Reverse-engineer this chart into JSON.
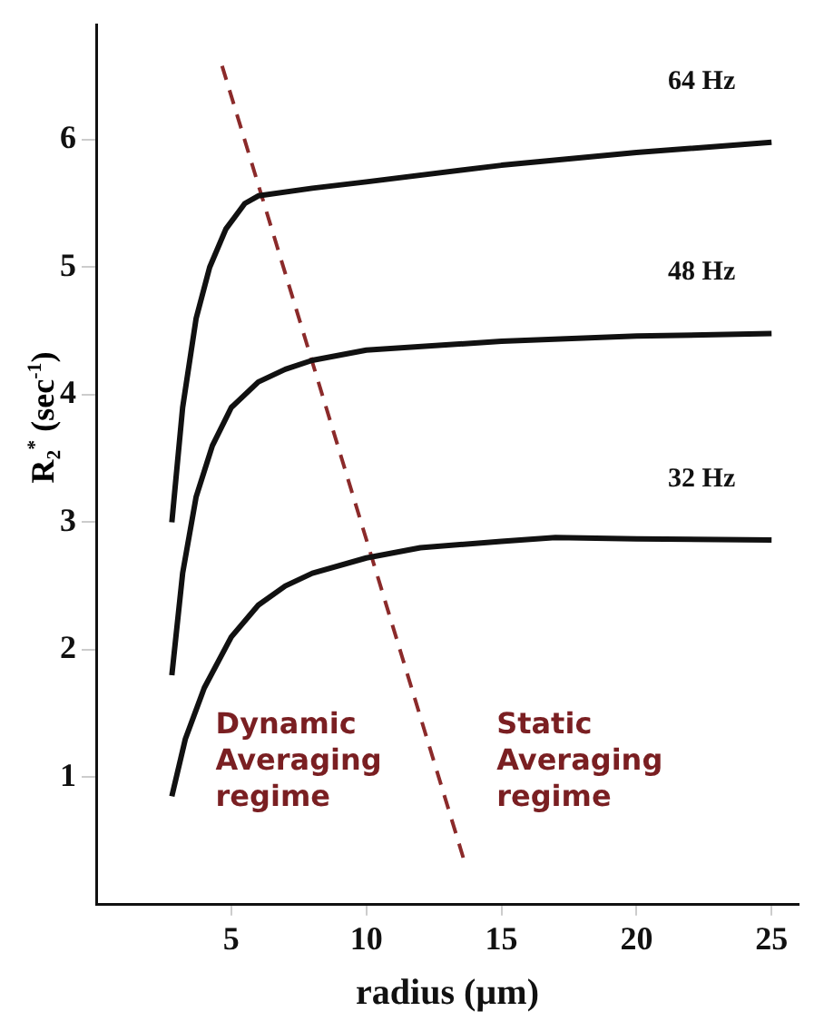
{
  "chart_data": {
    "type": "line",
    "xlabel": "radius (µm)",
    "ylabel": "R₂$^{*}$ (sec$^{-1}$)",
    "xlim": [
      0,
      26
    ],
    "ylim": [
      0,
      6.9
    ],
    "xticks": [
      5,
      10,
      15,
      20,
      25
    ],
    "yticks": [
      1,
      2,
      3,
      4,
      5,
      6
    ],
    "grid": false,
    "legend": false,
    "marker": "none",
    "line_style": "solid",
    "series": [
      {
        "name": "64 Hz",
        "color": "#111111",
        "x": [
          2.8,
          3.2,
          3.7,
          4.2,
          4.8,
          5.5,
          6,
          8,
          10,
          15,
          20,
          25
        ],
        "values": [
          3.0,
          3.9,
          4.6,
          5.0,
          5.3,
          5.5,
          5.56,
          5.62,
          5.67,
          5.8,
          5.9,
          5.98
        ]
      },
      {
        "name": "48 Hz",
        "color": "#111111",
        "x": [
          2.8,
          3.2,
          3.7,
          4.3,
          5,
          6,
          7,
          8,
          10,
          15,
          20,
          25
        ],
        "values": [
          1.8,
          2.6,
          3.2,
          3.6,
          3.9,
          4.1,
          4.2,
          4.27,
          4.35,
          4.42,
          4.46,
          4.48
        ]
      },
      {
        "name": "32 Hz",
        "color": "#111111",
        "x": [
          2.8,
          3.3,
          4,
          5,
          6,
          7,
          8,
          10,
          12,
          15,
          17,
          20,
          25
        ],
        "values": [
          0.85,
          1.3,
          1.7,
          2.1,
          2.35,
          2.5,
          2.6,
          2.72,
          2.8,
          2.85,
          2.88,
          2.87,
          2.86
        ]
      },
      {
        "type": "line",
        "line_style": "dashed",
        "color": "#8b2a2a",
        "x": [
          4.66,
          13.6
        ],
        "values": [
          6.58,
          0.36
        ]
      }
    ],
    "annotations": [
      "Dynamic\nAveraging\nregime",
      "Static\nAveraging\nregime"
    ]
  }
}
